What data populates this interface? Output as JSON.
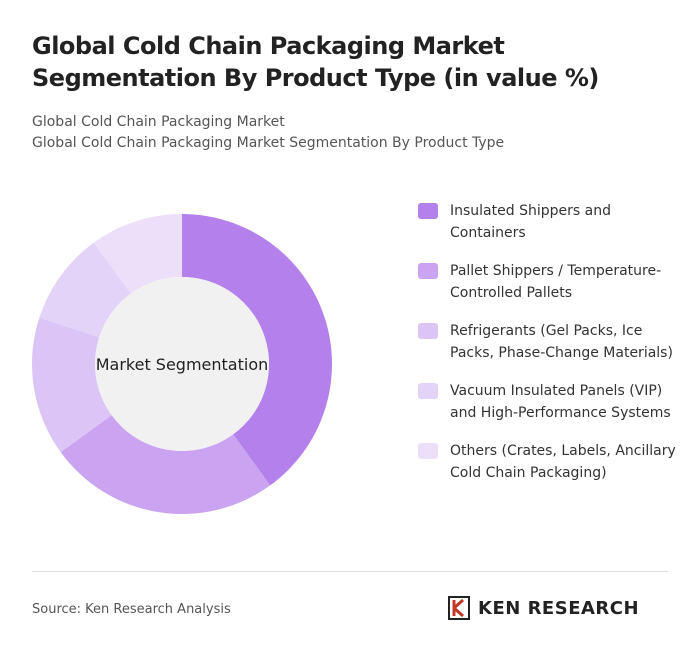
{
  "chart_data": {
    "type": "donut",
    "title": "Global Cold Chain Packaging Market Segmentation By Product Type (in value %)",
    "subtitle": "Global Cold Chain Packaging Market",
    "subtitle2": "Global Cold Chain Packaging Market Segmentation By Product Type",
    "center_label": "Market Segmentation",
    "categories": [
      "Insulated Shippers and Containers",
      "Pallet Shippers / Temperature-Controlled Pallets",
      "Refrigerants (Gel Packs, Ice Packs, Phase-Change Materials)",
      "Vacuum Insulated Panels (VIP) and High-Performance Systems",
      "Others (Crates, Labels, Ancillary Cold Chain Packaging)"
    ],
    "values": [
      40,
      25,
      15,
      10,
      10
    ],
    "colors": [
      "#b481ec",
      "#caa4f1",
      "#dcc5f6",
      "#e4d3f8",
      "#ebdff9"
    ]
  },
  "source": "Source: Ken Research Analysis",
  "logo": "KEN RESEARCH"
}
